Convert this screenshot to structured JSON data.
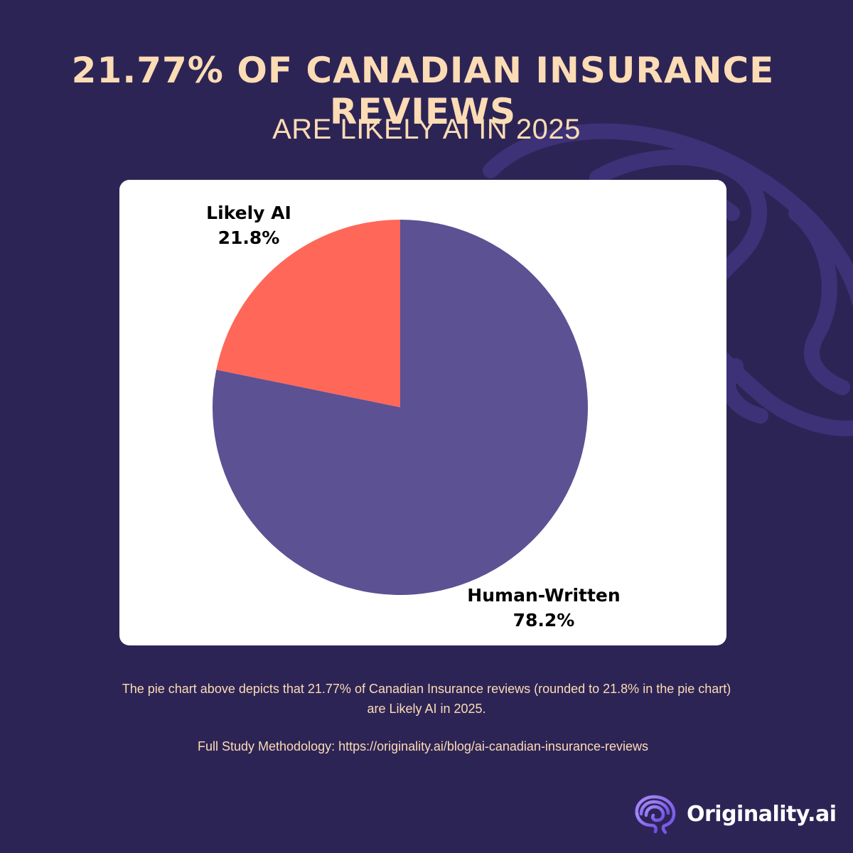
{
  "title": "21.77% OF CANADIAN INSURANCE REVIEWS",
  "subtitle": "ARE LIKELY AI IN 2025",
  "chart_data": {
    "type": "pie",
    "categories": [
      "Likely AI",
      "Human-Written"
    ],
    "values": [
      21.8,
      78.2
    ],
    "labels": [
      "21.8%",
      "78.2%"
    ],
    "colors": [
      "#ff6759",
      "#5c5193"
    ]
  },
  "caption": "The pie chart above depicts that 21.77% of Canadian Insurance reviews (rounded to 21.8% in the pie chart) are Likely AI in 2025.",
  "methodology": "Full Study Methodology: https://originality.ai/blog/ai-canadian-insurance-reviews",
  "brand": {
    "name": "Originality.ai",
    "icon": "brain-icon",
    "accent": "#8b6cf0"
  },
  "colors": {
    "background": "#2d2456",
    "heading": "#fcdcb4"
  }
}
